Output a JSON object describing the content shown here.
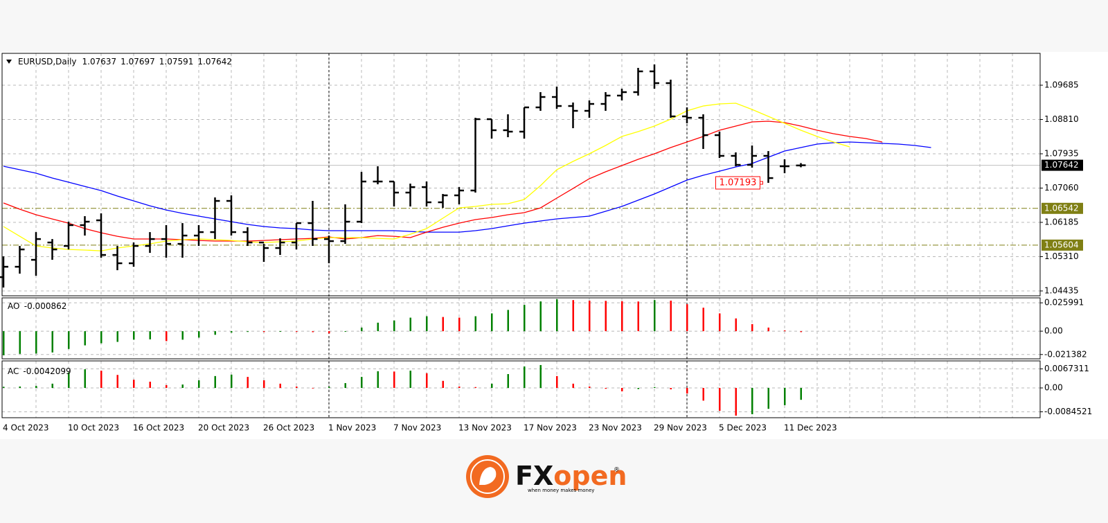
{
  "chart_data": [
    {
      "type": "candlestick",
      "symbol": "EURUSD,Daily",
      "color": "#000000",
      "categories": [
        "4 Oct 2023",
        null,
        null,
        null,
        "10 Oct 2023",
        null,
        null,
        null,
        "16 Oct 2023",
        null,
        null,
        null,
        "20 Oct 2023",
        null,
        null,
        null,
        "26 Oct 2023",
        null,
        null,
        null,
        "1 Nov 2023",
        null,
        null,
        null,
        "7 Nov 2023",
        null,
        null,
        null,
        "13 Nov 2023",
        null,
        null,
        null,
        "17 Nov 2023",
        null,
        null,
        null,
        "23 Nov 2023",
        null,
        null,
        null,
        "29 Nov 2023",
        null,
        null,
        null,
        "5 Dec 2023",
        null,
        null,
        null,
        "11 Dec 2023",
        null,
        null,
        null,
        null,
        null,
        null,
        null,
        null,
        null
      ],
      "open": [
        1.04787,
        1.05052,
        1.05229,
        1.05671,
        1.05583,
        1.06114,
        1.06237,
        1.05353,
        1.05141,
        1.05583,
        1.05759,
        1.05636,
        1.05848,
        1.05936,
        1.06732,
        1.05936,
        1.05671,
        1.0553,
        1.05671,
        1.06166,
        1.05759,
        1.05706,
        1.06202,
        1.07227,
        1.07227,
        1.06945,
        1.07085,
        1.06697,
        1.06874,
        1.06998,
        1.08818,
        1.08536,
        1.085,
        1.09119,
        1.09384,
        1.09154,
        1.09031,
        1.09207,
        1.0942,
        1.09508,
        1.10038,
        1.09738,
        1.08889,
        1.08854,
        1.08411,
        1.07882,
        1.07652,
        1.07882,
        1.07616,
        1.07637,
        null,
        null,
        null,
        null,
        null,
        null,
        null,
        null
      ],
      "high": [
        1.05317,
        1.05583,
        1.05936,
        1.05759,
        1.06202,
        1.06343,
        1.06414,
        1.05583,
        1.05671,
        1.05936,
        1.06114,
        1.06166,
        1.06114,
        1.06821,
        1.06874,
        1.0606,
        1.05636,
        1.05777,
        1.06166,
        1.06732,
        1.05848,
        1.06644,
        1.07474,
        1.07616,
        1.07227,
        1.07173,
        1.07227,
        1.06909,
        1.07085,
        1.08854,
        1.08818,
        1.08942,
        1.09119,
        1.09508,
        1.0965,
        1.09243,
        1.09296,
        1.09508,
        1.09596,
        1.10127,
        1.10215,
        1.09826,
        1.09119,
        1.08942,
        1.085,
        1.0797,
        1.08146,
        1.08004,
        1.07793,
        1.07697,
        null,
        null,
        null,
        null,
        null,
        null,
        null,
        null
      ],
      "low": [
        1.04522,
        1.04876,
        1.04822,
        1.05229,
        1.05494,
        1.05848,
        1.05282,
        1.04964,
        1.05052,
        1.05406,
        1.05282,
        1.05282,
        1.05583,
        1.05759,
        1.05848,
        1.05583,
        1.05176,
        1.05353,
        1.05494,
        1.05583,
        1.05141,
        1.05636,
        1.06166,
        1.07156,
        1.0659,
        1.0659,
        1.0659,
        1.06555,
        1.06644,
        1.06945,
        1.08323,
        1.08358,
        1.08323,
        1.09031,
        1.09084,
        1.08588,
        1.08854,
        1.09031,
        1.09296,
        1.0942,
        1.09596,
        1.08854,
        1.08712,
        1.08058,
        1.07828,
        1.07616,
        1.07581,
        1.07193,
        1.07439,
        1.07591,
        null,
        null,
        null,
        null,
        null,
        null,
        null,
        null
      ],
      "close": [
        1.05052,
        1.05494,
        1.05759,
        1.05494,
        1.06114,
        1.06202,
        1.05353,
        1.05141,
        1.05583,
        1.05759,
        1.05636,
        1.05848,
        1.05936,
        1.06732,
        1.05936,
        1.05671,
        1.0553,
        1.05671,
        1.06166,
        1.05759,
        1.05706,
        1.06202,
        1.07227,
        1.07227,
        1.06945,
        1.07085,
        1.06697,
        1.06874,
        1.06998,
        1.08818,
        1.08536,
        1.085,
        1.09119,
        1.09384,
        1.09154,
        1.09031,
        1.09207,
        1.0942,
        1.09508,
        1.10038,
        1.09738,
        1.08889,
        1.08854,
        1.08411,
        1.07882,
        1.07652,
        1.07882,
        1.07315,
        1.07616,
        1.07642,
        null,
        null,
        null,
        null,
        null,
        null,
        null,
        null
      ],
      "series": [
        {
          "color": "#0000ff",
          "values": [
            1.07616,
            1.07528,
            1.07439,
            1.07316,
            1.0721,
            1.07103,
            1.06997,
            1.06856,
            1.06732,
            1.06608,
            1.06502,
            1.06414,
            1.06343,
            1.06273,
            1.06202,
            1.06131,
            1.06078,
            1.06043,
            1.06025,
            1.0599,
            1.05972,
            1.05972,
            1.05972,
            1.05972,
            1.05972,
            1.05954,
            1.05936,
            1.05936,
            1.05936,
            1.05972,
            1.06025,
            1.06096,
            1.06166,
            1.0622,
            1.06273,
            1.06308,
            1.06343,
            1.06467,
            1.06591,
            1.0675,
            1.06909,
            1.07086,
            1.07263,
            1.07386,
            1.07492,
            1.07599,
            1.07687,
            1.07846,
            1.08005,
            1.08094,
            1.08182,
            1.08217,
            1.08235,
            1.08217,
            1.082,
            1.08182,
            1.08147,
            1.08094
          ]
        },
        {
          "color": "#ff0000",
          "values": [
            1.06679,
            1.0652,
            1.06379,
            1.06272,
            1.06166,
            1.06025,
            1.05919,
            1.0583,
            1.0576,
            1.0576,
            1.0576,
            1.05742,
            1.05724,
            1.05707,
            1.05707,
            1.05707,
            1.05724,
            1.05742,
            1.0576,
            1.05777,
            1.05813,
            1.0576,
            1.05795,
            1.05848,
            1.0583,
            1.05795,
            1.05936,
            1.0606,
            1.06166,
            1.06255,
            1.06308,
            1.06379,
            1.06432,
            1.06555,
            1.06803,
            1.0705,
            1.07298,
            1.07475,
            1.07634,
            1.07793,
            1.07934,
            1.08094,
            1.08235,
            1.08376,
            1.08536,
            1.08642,
            1.08748,
            1.08765,
            1.0873,
            1.08642,
            1.08536,
            1.08447,
            1.08376,
            1.08323,
            1.08235,
            null,
            null,
            null
          ]
        },
        {
          "color": "#ffff00",
          "values": [
            1.06078,
            1.0583,
            1.05583,
            1.0553,
            1.05494,
            1.05477,
            1.05459,
            1.0553,
            1.05583,
            1.05636,
            1.05707,
            1.05742,
            1.0576,
            1.05742,
            1.05724,
            1.05689,
            1.05671,
            1.05689,
            1.05707,
            1.0576,
            1.05795,
            1.05795,
            1.05795,
            1.05777,
            1.0576,
            1.05883,
            1.06025,
            1.0629,
            1.06555,
            1.06591,
            1.06644,
            1.06661,
            1.06768,
            1.07121,
            1.07528,
            1.0774,
            1.07934,
            1.08147,
            1.08376,
            1.085,
            1.08642,
            1.08818,
            1.09031,
            1.09154,
            1.09207,
            1.09225,
            1.09066,
            1.08889,
            1.08712,
            1.08536,
            1.08376,
            1.08235,
            1.08111,
            null,
            null,
            null,
            null,
            null
          ]
        }
      ],
      "ylim": [
        1.04311,
        1.10498
      ],
      "yticks": [
        1.09685,
        {
          "value": 1.0881,
          "label": "1.08810"
        },
        1.07935,
        {
          "value": 1.0706,
          "label": "1.07060"
        },
        1.06185,
        {
          "value": 1.0531,
          "label": "1.05310"
        },
        1.04435
      ],
      "grid": true,
      "levels": [
        {
          "value": 1.06542,
          "color": "#7f7f14"
        },
        {
          "value": 1.05604,
          "color": "#7f7f14"
        }
      ],
      "price_label": {
        "value": 1.07193,
        "color": "#ff0000"
      }
    },
    {
      "type": "bar",
      "name": "AO",
      "up_color": "#008000",
      "down_color": "#ff0000",
      "values": [
        -0.0221,
        -0.0208,
        -0.0205,
        -0.0195,
        -0.0163,
        -0.013,
        -0.0111,
        -0.0098,
        -0.0078,
        -0.0075,
        -0.0091,
        -0.0078,
        -0.0059,
        -0.0033,
        -0.0013,
        -0.0007,
        -0.0008,
        -0.0006,
        -0.0007,
        -0.0009,
        -0.002,
        -0.0006,
        0.0033,
        0.0078,
        0.0098,
        0.0124,
        0.0137,
        0.013,
        0.0124,
        0.0137,
        0.0163,
        0.0195,
        0.0241,
        0.0273,
        0.0293,
        0.0285,
        0.028,
        0.0278,
        0.0275,
        0.0272,
        0.0285,
        0.028,
        0.0247,
        0.0215,
        0.0163,
        0.0117,
        0.0065,
        0.0033,
        0.0007,
        -0.000862,
        null,
        null,
        null,
        null,
        null,
        null,
        null,
        null
      ],
      "ylim": [
        -0.02534,
        0.03054
      ],
      "yticks": [
        0.025991,
        {
          "value": 0,
          "label": "0.00"
        },
        -0.021382
      ]
    },
    {
      "type": "bar",
      "name": "AC",
      "up_color": "#008000",
      "down_color": "#ff0000",
      "values": [
        0.0004,
        0.0005,
        0.0007,
        0.0015,
        0.0055,
        0.0066,
        0.0061,
        0.0046,
        0.0029,
        0.0022,
        0.001,
        0.0012,
        0.0027,
        0.0042,
        0.0047,
        0.0039,
        0.0027,
        0.0015,
        0.0005,
        -0.0001,
        0.0004,
        0.0017,
        0.0039,
        0.0059,
        0.0058,
        0.0061,
        0.0052,
        0.0025,
        0.0005,
        0.0003,
        0.0015,
        0.0049,
        0.0076,
        0.0081,
        0.0042,
        0.0015,
        0.0005,
        -0.0003,
        -0.0012,
        -0.0004,
        0.0003,
        -0.0005,
        -0.002,
        -0.0045,
        -0.0081,
        -0.0098,
        -0.0093,
        -0.0074,
        -0.0061,
        -0.0042099,
        null,
        null,
        null,
        null,
        null,
        null,
        null,
        null
      ],
      "ylim": [
        -0.01054,
        0.00956
      ],
      "yticks": [
        0.0067311,
        {
          "value": 0,
          "label": "0.00"
        },
        -0.0084521
      ]
    }
  ],
  "logo": {
    "fx": "FX",
    "open": "open",
    "registered": "®",
    "tagline": "when money makes money"
  }
}
